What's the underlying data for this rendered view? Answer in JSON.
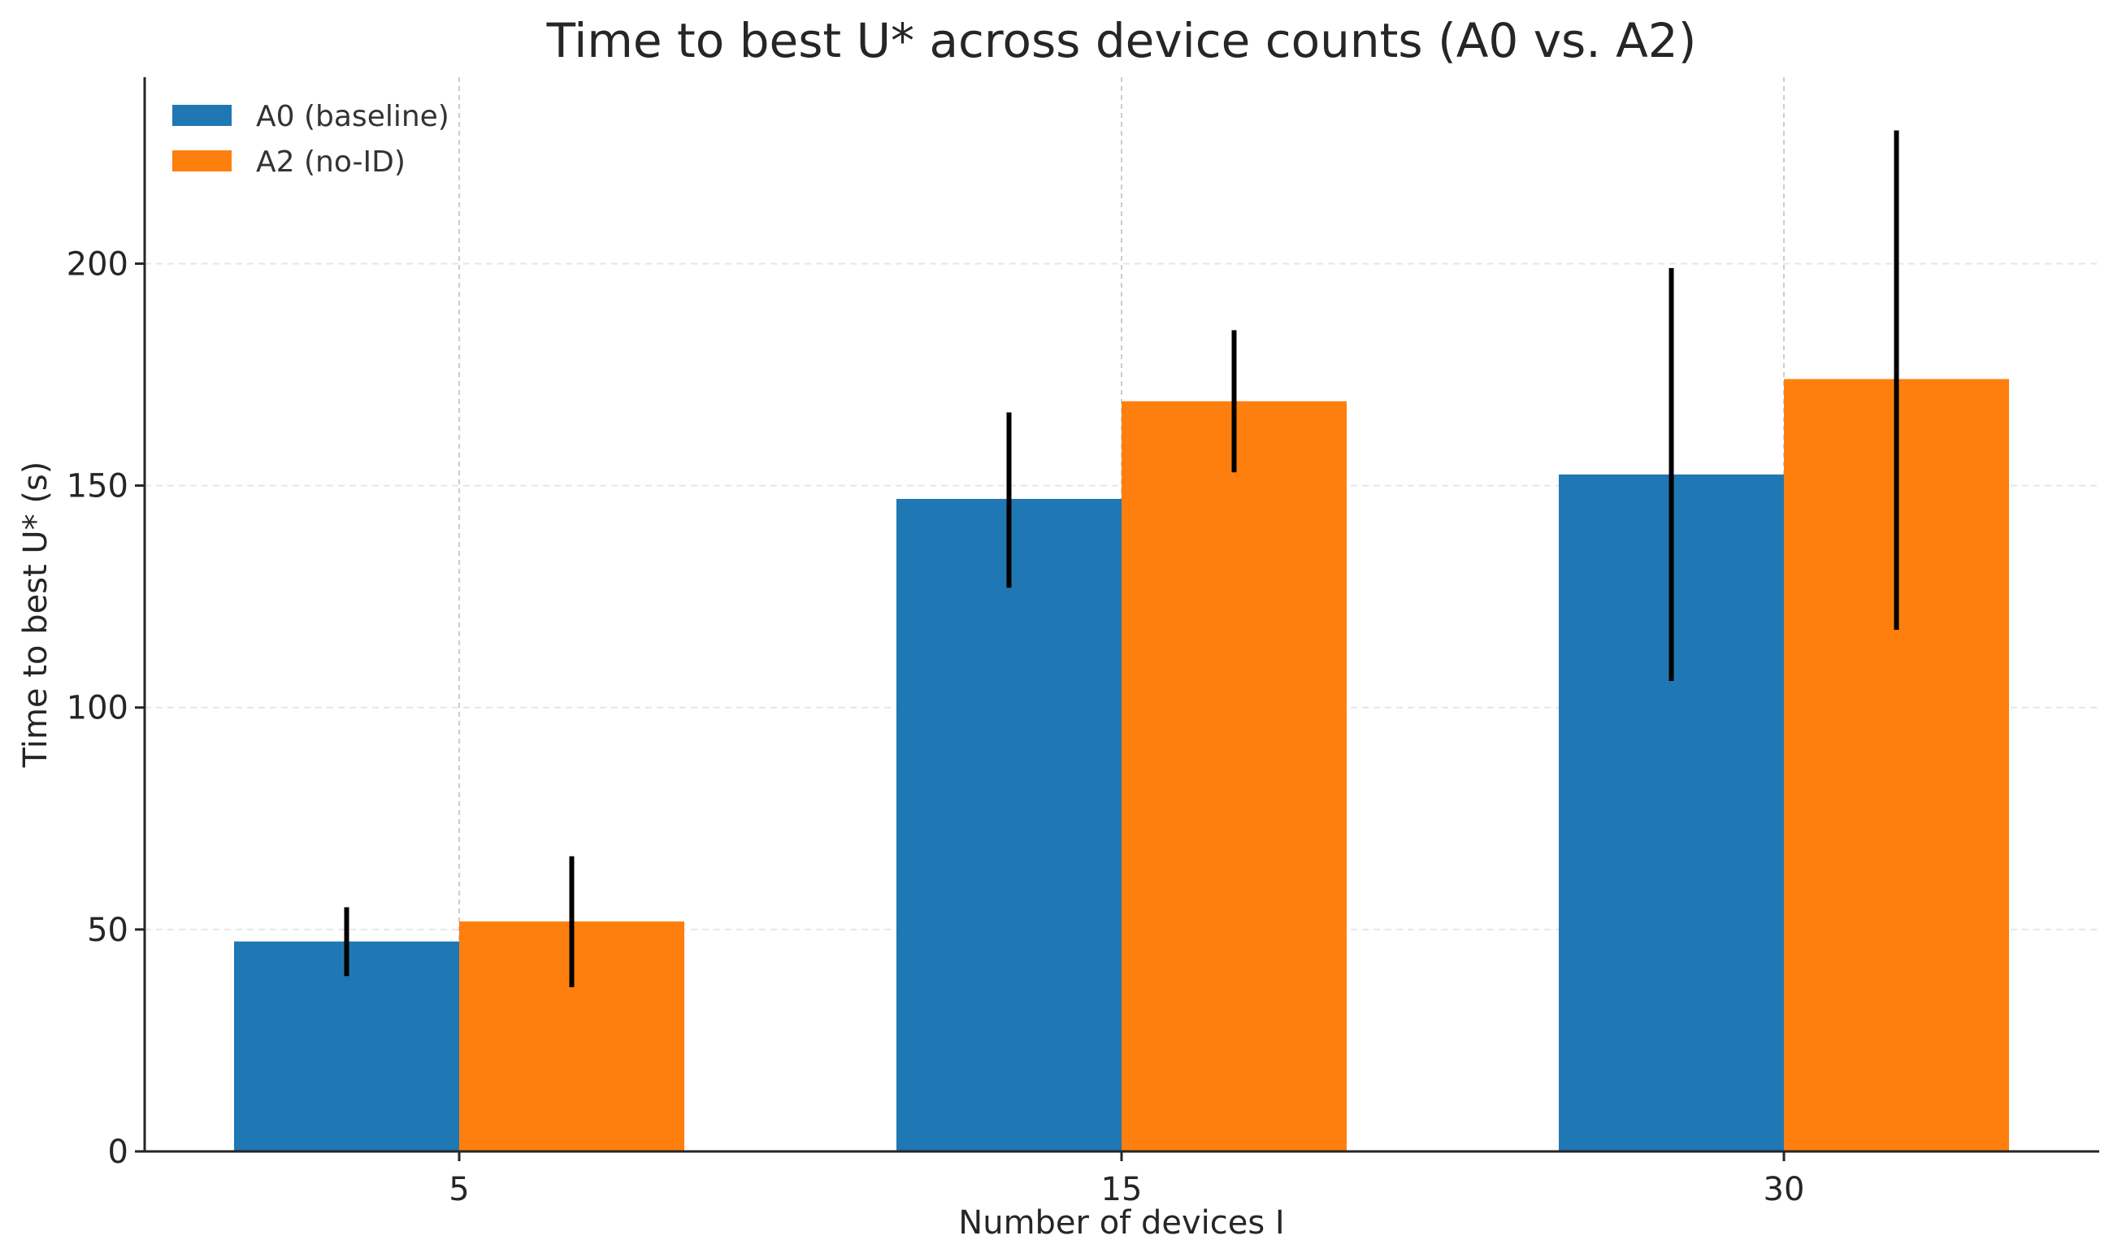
{
  "chart_data": {
    "type": "bar",
    "title": "Time to best U* across device counts (A0 vs. A2)",
    "xlabel": "Number of devices I",
    "ylabel": "Time to best U* (s)",
    "categories": [
      "5",
      "15",
      "30"
    ],
    "series": [
      {
        "name": "A0 (baseline)",
        "color": "#1f77b4",
        "values": [
          47.3,
          147.0,
          152.5
        ],
        "error_low": [
          39.5,
          127.0,
          106.0
        ],
        "error_high": [
          55.0,
          166.5,
          199.0
        ]
      },
      {
        "name": "A2 (no-ID)",
        "color": "#ff7f0e",
        "values": [
          51.8,
          169.0,
          174.0
        ],
        "error_low": [
          37.0,
          153.0,
          117.5
        ],
        "error_high": [
          66.5,
          185.0,
          230.0
        ]
      }
    ],
    "ylim": [
      0,
      242
    ],
    "yticks": [
      0,
      50,
      100,
      150,
      200
    ],
    "grid": true,
    "legend_position": "top-left"
  }
}
